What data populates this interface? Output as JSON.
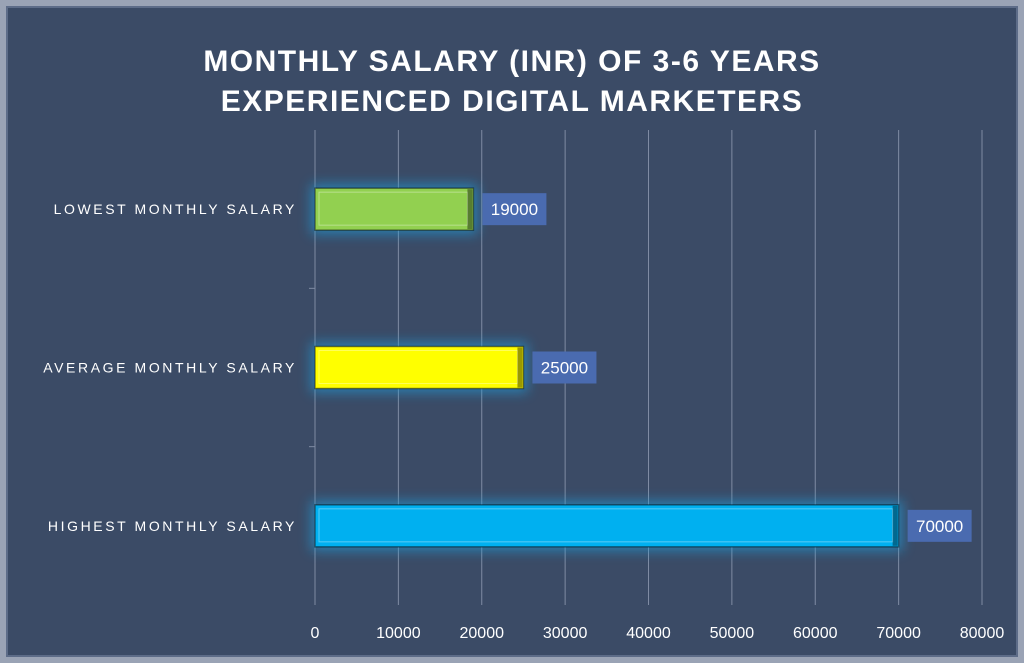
{
  "chart_data": {
    "type": "bar",
    "orientation": "horizontal",
    "title": [
      "MONTHLY SALARY (INR) OF 3-6 YEARS",
      "EXPERIENCED DIGITAL MARKETERS"
    ],
    "categories": [
      "LOWEST MONTHLY SALARY",
      "AVERAGE MONTHLY SALARY",
      "HIGHEST MONTHLY SALARY"
    ],
    "values": [
      19000,
      25000,
      70000
    ],
    "data_labels": [
      "19000",
      "25000",
      "70000"
    ],
    "colors": [
      "#92d050",
      "#ffff00",
      "#00b0f0"
    ],
    "xlim": [
      0,
      80000
    ],
    "xticks": [
      "0",
      "10000",
      "20000",
      "30000",
      "40000",
      "50000",
      "60000",
      "70000",
      "80000"
    ],
    "xlabel": "",
    "ylabel": "",
    "grid": true,
    "background": "#3b4b66",
    "label_box_color": "#4a6bb0"
  }
}
